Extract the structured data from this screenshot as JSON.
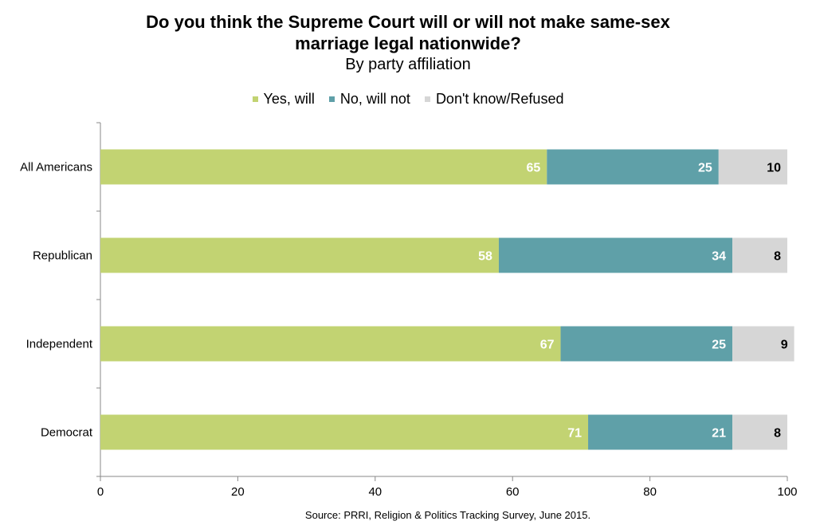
{
  "chart_data": {
    "type": "bar",
    "orientation": "horizontal",
    "stacked": true,
    "title": "Do you think the Supreme Court will or will not make same-sex marriage legal nationwide?",
    "title_line1": "Do you think the Supreme Court will or will not make same-sex",
    "title_line2": "marriage legal nationwide?",
    "subtitle": "By party affiliation",
    "categories": [
      "All Americans",
      "Republican",
      "Independent",
      "Democrat"
    ],
    "series": [
      {
        "name": "Yes, will",
        "color": "#c2d372",
        "label_color": "#ffffff",
        "values": [
          65,
          58,
          67,
          71
        ]
      },
      {
        "name": "No, will not",
        "color": "#5fa0a8",
        "label_color": "#ffffff",
        "values": [
          25,
          34,
          25,
          21
        ]
      },
      {
        "name": "Don't know/Refused",
        "color": "#d6d6d6",
        "label_color": "#000000",
        "values": [
          10,
          8,
          9,
          8
        ]
      }
    ],
    "xlim": [
      0,
      100
    ],
    "xticks": [
      0,
      20,
      40,
      60,
      80,
      100
    ],
    "legend_position": "top-center",
    "grid": false,
    "source": "Source: PRRI, Religion & Politics Tracking Survey, June 2015."
  }
}
